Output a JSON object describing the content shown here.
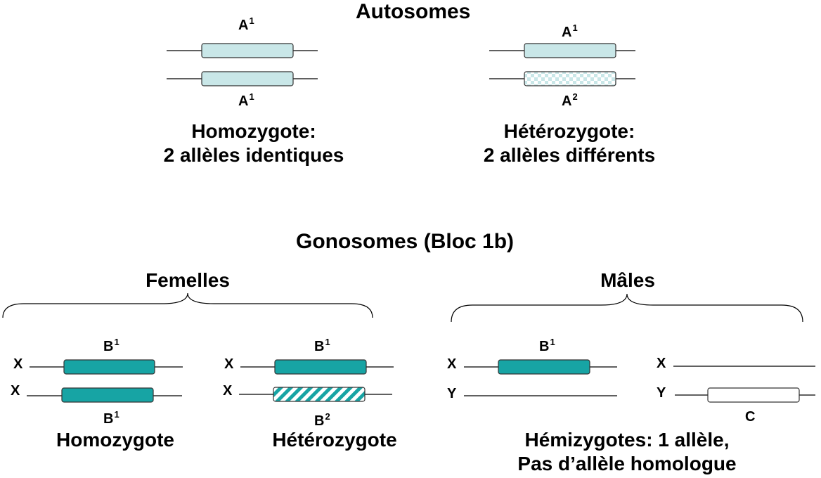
{
  "colors": {
    "autosome_fill": "#c9e7e8",
    "gonosome_fill": "#17a4a4",
    "outline": "#333333",
    "line": "#000000"
  },
  "autosomes": {
    "title": "Autosomes",
    "homozygote": {
      "top_label": "A",
      "top_sup": "1",
      "bottom_label": "A",
      "bottom_sup": "1",
      "caption_line1": "Homozygote:",
      "caption_line2": "2 allèles identiques"
    },
    "heterozygote": {
      "top_label": "A",
      "top_sup": "1",
      "bottom_label": "A",
      "bottom_sup": "2",
      "caption_line1": "Hétérozygote:",
      "caption_line2": "2 allèles différents"
    }
  },
  "gonosomes": {
    "title": "Gonosomes (Bloc 1b)",
    "females": {
      "header": "Femelles",
      "homozygote": {
        "chr_top": "X",
        "chr_bottom": "X",
        "top_label": "B",
        "top_sup": "1",
        "bottom_label": "B",
        "bottom_sup": "1",
        "caption": "Homozygote"
      },
      "heterozygote": {
        "chr_top": "X",
        "chr_bottom": "X",
        "top_label": "B",
        "top_sup": "1",
        "bottom_label": "B",
        "bottom_sup": "2",
        "caption": "Hétérozygote"
      }
    },
    "males": {
      "header": "Mâles",
      "pair1": {
        "chr_top": "X",
        "chr_bottom": "Y",
        "top_label": "B",
        "top_sup": "1"
      },
      "pair2": {
        "chr_top": "X",
        "chr_bottom": "Y",
        "bottom_label": "C"
      },
      "caption_line1": "Hémizygotes: 1 allèle,",
      "caption_line2": "Pas d’allèle homologue"
    }
  }
}
